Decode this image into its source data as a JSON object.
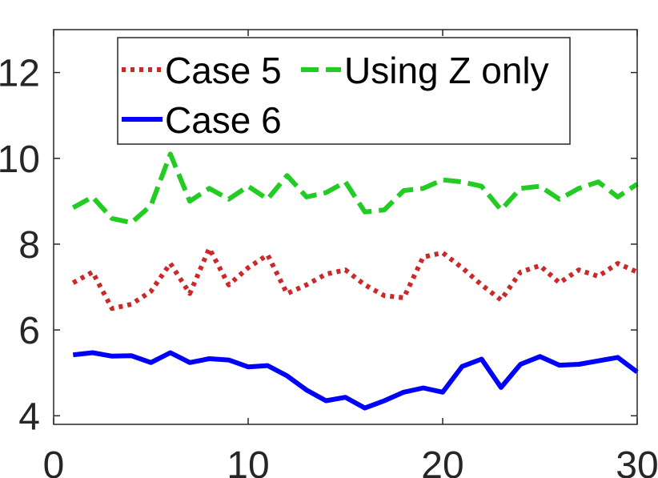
{
  "chart_data": {
    "type": "line",
    "title": "",
    "xlabel": "",
    "ylabel": "",
    "xlim": [
      0,
      30
    ],
    "ylim": [
      3.8,
      13
    ],
    "xticks": [
      0,
      10,
      20,
      30
    ],
    "yticks": [
      4,
      6,
      8,
      10,
      12
    ],
    "grid": false,
    "legend_position": "top",
    "x": [
      1,
      2,
      3,
      4,
      5,
      6,
      7,
      8,
      9,
      10,
      11,
      12,
      13,
      14,
      15,
      16,
      17,
      18,
      19,
      20,
      21,
      22,
      23,
      24,
      25,
      26,
      27,
      28,
      29,
      30
    ],
    "series": [
      {
        "name": "Case 5",
        "color": "#cc2828",
        "style": "dotted",
        "values": [
          7.1,
          7.35,
          6.5,
          6.6,
          6.9,
          7.55,
          6.85,
          7.9,
          7.05,
          7.45,
          7.75,
          6.85,
          7.05,
          7.3,
          7.4,
          7.05,
          6.8,
          6.75,
          7.7,
          7.8,
          7.45,
          7.05,
          6.7,
          7.35,
          7.5,
          7.1,
          7.4,
          7.25,
          7.55,
          7.35
        ]
      },
      {
        "name": "Using Z only",
        "color": "#22cc22",
        "style": "dashed",
        "values": [
          8.85,
          9.1,
          8.6,
          8.5,
          8.9,
          10.1,
          9.0,
          9.3,
          9.05,
          9.35,
          9.05,
          9.6,
          9.1,
          9.2,
          9.45,
          8.75,
          8.8,
          9.25,
          9.3,
          9.5,
          9.45,
          9.35,
          8.8,
          9.3,
          9.35,
          9.05,
          9.3,
          9.45,
          9.1,
          9.4
        ]
      },
      {
        "name": "Case 6",
        "color": "#0000ff",
        "style": "solid",
        "values": [
          5.42,
          5.47,
          5.39,
          5.4,
          5.24,
          5.47,
          5.24,
          5.33,
          5.3,
          5.14,
          5.17,
          4.93,
          4.6,
          4.35,
          4.43,
          4.18,
          4.35,
          4.55,
          4.65,
          4.55,
          5.15,
          5.32,
          4.66,
          5.2,
          5.38,
          5.18,
          5.2,
          5.28,
          5.36,
          5.02
        ]
      }
    ],
    "legend": [
      "Case 5",
      "Using Z only",
      "Case 6"
    ]
  }
}
